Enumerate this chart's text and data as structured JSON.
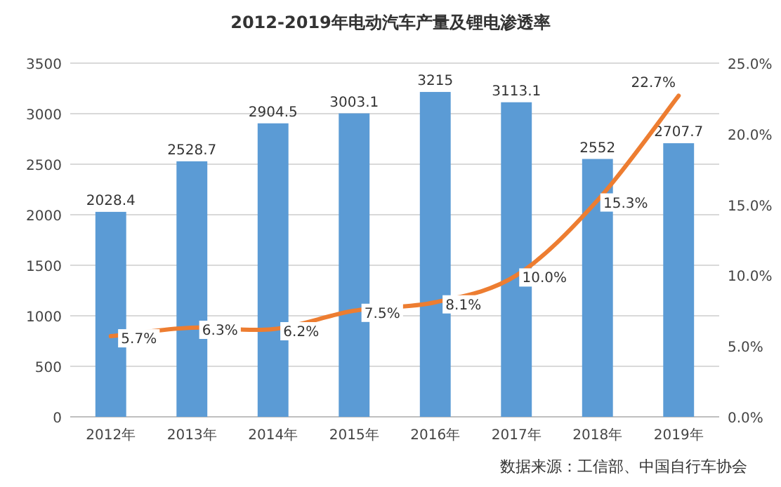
{
  "chart_data": {
    "type": "bar",
    "title": "2012-2019年电动汽车产量及锂电渗透率",
    "categories": [
      "2012年",
      "2013年",
      "2014年",
      "2015年",
      "2016年",
      "2017年",
      "2018年",
      "2019年"
    ],
    "series": [
      {
        "color": "#5b9bd5",
        "values": [
          2028.4,
          2528.7,
          2904.5,
          3003.1,
          3215,
          3113.1,
          2552,
          2707.7
        ],
        "value_labels": [
          "2028.4",
          "2528.7",
          "2904.5",
          "3003.1",
          "3215",
          "3113.1",
          "2552",
          "2707.7"
        ]
      },
      {
        "type": "line",
        "axis": "y2",
        "color": "#ed7d31",
        "values": [
          5.7,
          6.3,
          6.2,
          7.5,
          8.1,
          10.0,
          15.3,
          22.7
        ],
        "value_labels": [
          "5.7%",
          "6.3%",
          "6.2%",
          "7.5%",
          "8.1%",
          "10.0%",
          "15.3%",
          "22.7%"
        ]
      }
    ],
    "ylim": [
      0,
      3500
    ],
    "yticks": [
      0,
      500,
      1000,
      1500,
      2000,
      2500,
      3000,
      3500
    ],
    "y2lim": [
      0,
      25
    ],
    "y2ticks": [
      {
        "value": 0,
        "label": "0.0%"
      },
      {
        "value": 5,
        "label": "5.0%"
      },
      {
        "value": 10,
        "label": "10.0%"
      },
      {
        "value": 15,
        "label": "15.0%"
      },
      {
        "value": 20,
        "label": "20.0%"
      },
      {
        "value": 25,
        "label": "25.0%"
      }
    ],
    "grid": "y",
    "marker": "none",
    "line_style": "solid",
    "annotations": [
      "数据来源：工信部、中国自行车协会"
    ]
  }
}
